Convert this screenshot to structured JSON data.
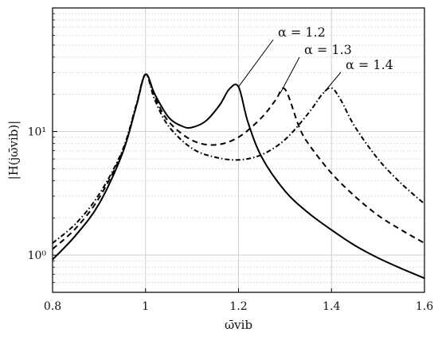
{
  "chart_data": {
    "type": "line",
    "xlabel": "ω̄vib",
    "ylabel": "|H(jω̄vib)|",
    "xlim": [
      0.8,
      1.6
    ],
    "ylim": [
      0.5,
      100
    ],
    "y_scale": "log",
    "grid": true,
    "x_ticks": [
      "0.8",
      "1",
      "1.2",
      "1.4",
      "1.6"
    ],
    "y_ticks": [
      {
        "value": 1,
        "label": "10⁰"
      },
      {
        "value": 10,
        "label": "10¹"
      }
    ],
    "series": [
      {
        "name": "α = 1.2",
        "style": "solid",
        "x": [
          0.8,
          0.85,
          0.9,
          0.95,
          0.98,
          1.0,
          1.02,
          1.05,
          1.08,
          1.1,
          1.13,
          1.16,
          1.18,
          1.2,
          1.22,
          1.25,
          1.3,
          1.35,
          1.4,
          1.45,
          1.5,
          1.55,
          1.6
        ],
        "y": [
          0.92,
          1.45,
          2.6,
          6.6,
          16.0,
          29.0,
          20.0,
          13.0,
          11.0,
          10.8,
          12.2,
          16.5,
          22.0,
          23.0,
          12.0,
          6.2,
          3.3,
          2.2,
          1.6,
          1.2,
          0.95,
          0.78,
          0.65
        ]
      },
      {
        "name": "α = 1.3",
        "style": "dashed",
        "x": [
          0.8,
          0.85,
          0.9,
          0.95,
          0.98,
          1.0,
          1.02,
          1.05,
          1.1,
          1.15,
          1.2,
          1.25,
          1.28,
          1.3,
          1.33,
          1.35,
          1.4,
          1.45,
          1.5,
          1.55,
          1.6
        ],
        "y": [
          1.12,
          1.65,
          2.9,
          6.8,
          16.0,
          29.0,
          19.0,
          12.0,
          8.5,
          7.8,
          9.0,
          13.0,
          18.0,
          22.0,
          11.0,
          8.0,
          4.6,
          3.0,
          2.1,
          1.6,
          1.25
        ]
      },
      {
        "name": "α = 1.4",
        "style": "dashdot",
        "x": [
          0.8,
          0.85,
          0.9,
          0.95,
          0.98,
          1.0,
          1.02,
          1.05,
          1.1,
          1.15,
          1.2,
          1.25,
          1.3,
          1.35,
          1.38,
          1.4,
          1.42,
          1.45,
          1.5,
          1.55,
          1.6
        ],
        "y": [
          1.25,
          1.8,
          3.1,
          7.0,
          16.5,
          29.0,
          18.0,
          11.0,
          7.3,
          6.2,
          5.9,
          6.5,
          8.6,
          14.0,
          20.0,
          22.5,
          18.0,
          11.0,
          6.0,
          3.8,
          2.6
        ]
      }
    ],
    "annotations": [
      {
        "text": "α = 1.2",
        "series": 0,
        "point": [
          1.2,
          23.0
        ]
      },
      {
        "text": "α = 1.3",
        "series": 1,
        "point": [
          1.29,
          20.5
        ]
      },
      {
        "text": "α = 1.4",
        "series": 2,
        "point": [
          1.385,
          21.0
        ]
      }
    ]
  }
}
